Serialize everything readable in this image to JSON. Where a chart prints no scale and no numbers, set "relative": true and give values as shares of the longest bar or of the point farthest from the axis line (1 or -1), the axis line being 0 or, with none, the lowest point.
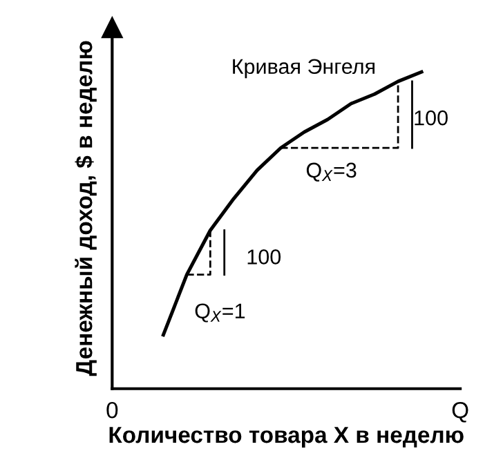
{
  "chart_data": {
    "type": "line",
    "relative": true,
    "xlabel": "Количество товара X в неделю",
    "ylabel": "Денежный доход, $ в неделю",
    "categories": [
      null,
      null,
      null,
      null,
      null,
      null,
      null,
      null,
      null,
      null,
      null,
      null
    ],
    "series": [
      {
        "color": "#000000",
        "values": [
          0.17,
          0.36,
          0.5,
          0.6,
          0.69,
          0.76,
          0.81,
          0.85,
          0.9,
          0.93,
          0.97,
          1.0
        ]
      }
    ],
    "annotations": [
      "Кривая Энгеля",
      "100",
      "Q$_{X}$=1",
      "Q$_{X}$=3",
      "100",
      "0",
      "Q"
    ],
    "marker": "none",
    "line_style": "solid"
  }
}
